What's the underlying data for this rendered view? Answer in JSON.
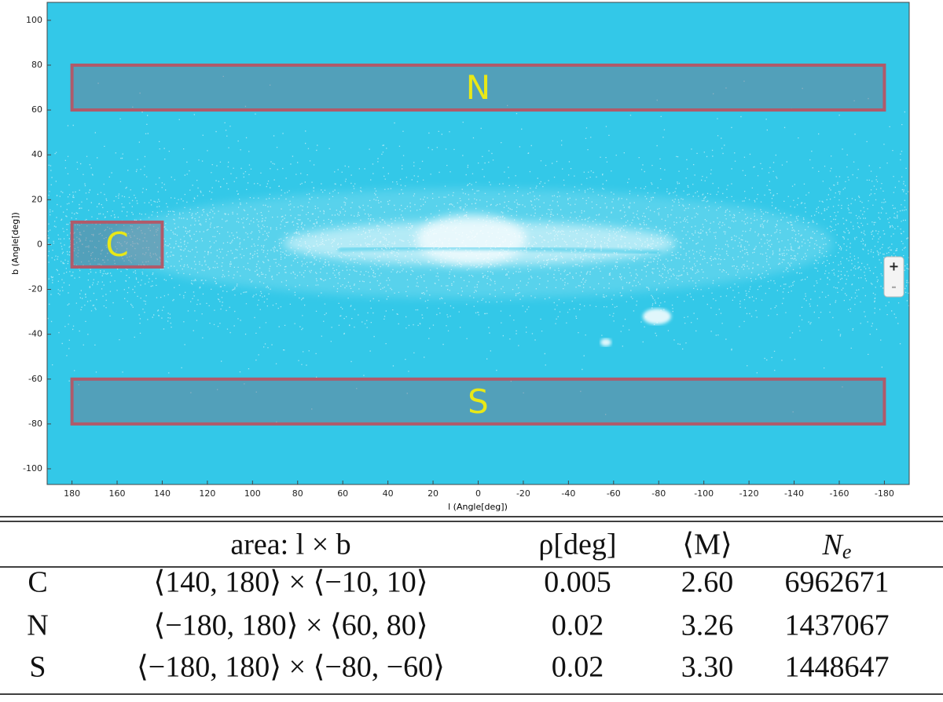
{
  "chart_data": {
    "type": "region-map",
    "x_label": "l (Angle[deg])",
    "y_label": "b (Angle[deg])",
    "xlim": [
      191,
      -191
    ],
    "ylim": [
      -107,
      108
    ],
    "xticks": [
      180,
      160,
      140,
      120,
      100,
      80,
      60,
      40,
      20,
      0,
      -20,
      -40,
      -60,
      -80,
      -100,
      -120,
      -140,
      -160,
      -180
    ],
    "yticks": [
      -100,
      -80,
      -60,
      -40,
      -20,
      0,
      20,
      40,
      60,
      80,
      100
    ],
    "background": "#33c8e8",
    "region_color": "#b05a6a",
    "label_color": "#e8e817",
    "regions": [
      {
        "label": "N",
        "l": [
          -180,
          180
        ],
        "b": [
          60,
          80
        ]
      },
      {
        "label": "C",
        "l": [
          140,
          180
        ],
        "b": [
          -10,
          10
        ]
      },
      {
        "label": "S",
        "l": [
          -180,
          180
        ],
        "b": [
          -80,
          -60
        ]
      }
    ],
    "controls": [
      "+",
      "-"
    ]
  },
  "table": {
    "header": [
      "area: l × b",
      "ρ[deg]",
      "⟨M⟩",
      {
        "main": "N",
        "sub": "e"
      }
    ],
    "rows": [
      [
        "C",
        "⟨140, 180⟩ × ⟨−10, 10⟩",
        "0.005",
        "2.60",
        "6962671"
      ],
      [
        "N",
        "⟨−180, 180⟩ × ⟨60, 80⟩",
        "0.02",
        "3.26",
        "1437067"
      ],
      [
        "S",
        "⟨−180, 180⟩ × ⟨−80, −60⟩",
        "0.02",
        "3.30",
        "1448647"
      ]
    ]
  }
}
